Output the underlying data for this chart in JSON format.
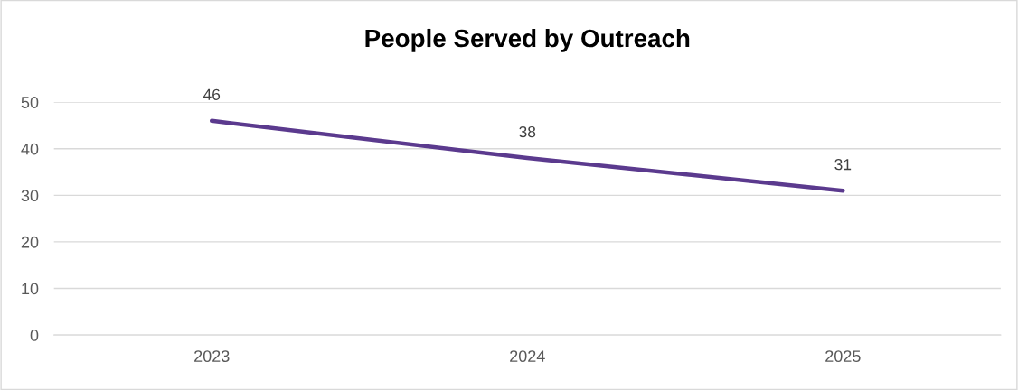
{
  "chart_data": {
    "type": "line",
    "title": "People Served by Outreach",
    "categories": [
      "2023",
      "2024",
      "2025"
    ],
    "series": [
      {
        "color": "#5b3a8e",
        "values": [
          46,
          38,
          31
        ]
      }
    ],
    "ylim": [
      0,
      50
    ],
    "yticks": [
      0,
      10,
      20,
      30,
      40,
      50
    ],
    "grid": "y",
    "data_labels": true,
    "marker": "none",
    "line_style": "solid",
    "legend": false
  }
}
